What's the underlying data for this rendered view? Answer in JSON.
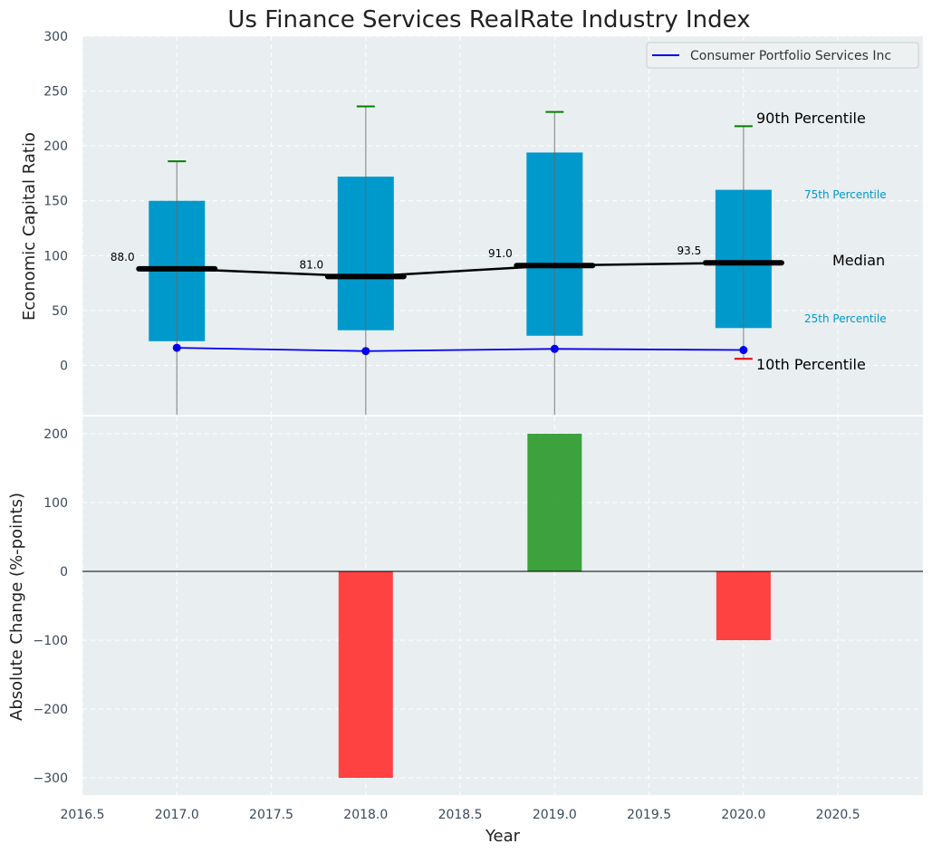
{
  "chart_data": {
    "type": "box-and-bar",
    "title": "Us Finance Services RealRate Industry Index",
    "xlabel": "Year",
    "x_ticks": [
      "2016.5",
      "2017.0",
      "2017.5",
      "2018.0",
      "2018.5",
      "2019.0",
      "2019.5",
      "2020.0",
      "2020.5"
    ],
    "xlim": [
      2016.5,
      2020.95
    ],
    "grid": true,
    "top": {
      "ylabel": "Economic Capital Ratio",
      "ylim": [
        -45,
        300
      ],
      "y_ticks": [
        "0",
        "50",
        "100",
        "150",
        "200",
        "250",
        "300"
      ],
      "boxes": [
        {
          "year": 2017,
          "p10": -50,
          "p25": 22,
          "median": 88.0,
          "median_label": "88.0",
          "p75": 150,
          "p90": 186
        },
        {
          "year": 2018,
          "p10": -50,
          "p25": 32,
          "median": 81.0,
          "median_label": "81.0",
          "p75": 172,
          "p90": 236
        },
        {
          "year": 2019,
          "p10": -50,
          "p25": 27,
          "median": 91.0,
          "median_label": "91.0",
          "p75": 194,
          "p90": 231
        },
        {
          "year": 2020,
          "p10": 6,
          "p25": 34,
          "median": 93.5,
          "median_label": "93.5",
          "p75": 160,
          "p90": 218
        }
      ],
      "company_series": {
        "name": "Consumer Portfolio Services Inc",
        "color": "#0000ee",
        "x": [
          2017,
          2018,
          2019,
          2020
        ],
        "y": [
          16,
          13,
          15,
          14
        ]
      },
      "annotations": {
        "p90": "90th Percentile",
        "p75": "75th Percentile",
        "median": "Median",
        "p25": "25th Percentile",
        "p10": "10th Percentile"
      },
      "legend_position": "top-right",
      "box_color": "#0099cc",
      "whisker_top_color": "#008000",
      "whisker_bottom_color": "#dd0000"
    },
    "bottom": {
      "ylabel": "Absolute Change (%-points)",
      "ylim": [
        -325,
        225
      ],
      "y_ticks": [
        "−300",
        "−200",
        "−100",
        "0",
        "100",
        "200"
      ],
      "bars": [
        {
          "year": 2018,
          "value": -300
        },
        {
          "year": 2019,
          "value": 200
        },
        {
          "year": 2020,
          "value": -100
        }
      ],
      "positive_color": "#2e9a2e",
      "negative_color": "#ff3333"
    }
  }
}
